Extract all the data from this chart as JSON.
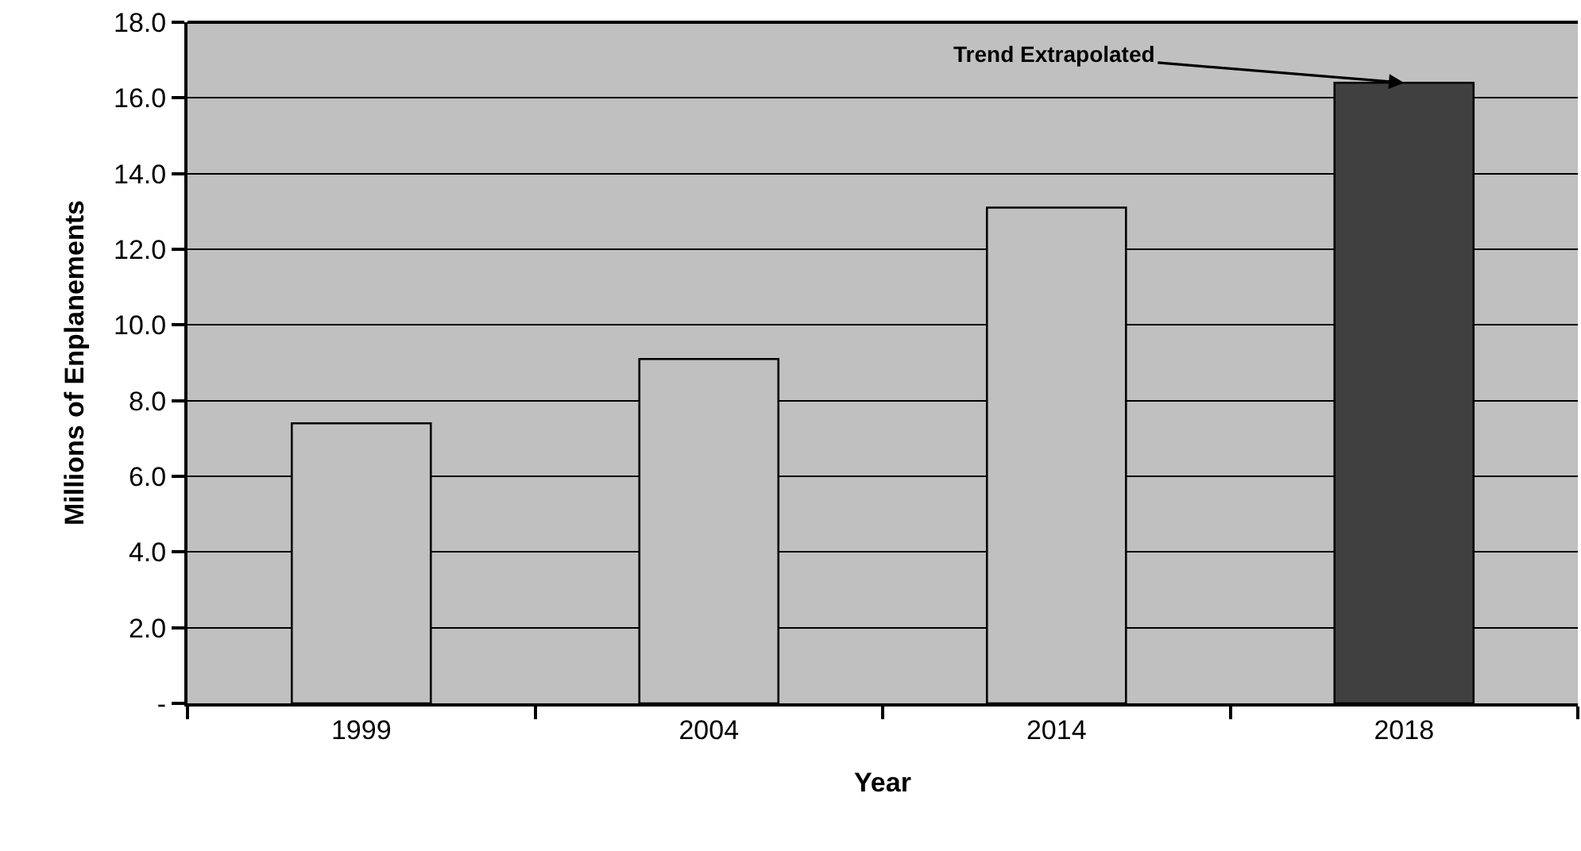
{
  "chart_data": {
    "type": "bar",
    "xlabel": "Year",
    "ylabel": "Millions of Enplanements",
    "categories": [
      "1999",
      "2004",
      "2014",
      "2018"
    ],
    "values": [
      7.4,
      9.1,
      13.1,
      16.4
    ],
    "colors": [
      "#c0c0c0",
      "#c0c0c0",
      "#c0c0c0",
      "#404040"
    ],
    "ylim": [
      0,
      18
    ],
    "yticks": [
      {
        "value": 0,
        "label": "-"
      },
      {
        "value": 2,
        "label": "2.0"
      },
      {
        "value": 4,
        "label": "4.0"
      },
      {
        "value": 6,
        "label": "6.0"
      },
      {
        "value": 8,
        "label": "8.0"
      },
      {
        "value": 10,
        "label": "10.0"
      },
      {
        "value": 12,
        "label": "12.0"
      },
      {
        "value": 14,
        "label": "14.0"
      },
      {
        "value": 16,
        "label": "16.0"
      },
      {
        "value": 18,
        "label": "18.0"
      }
    ],
    "grid": "y",
    "annotations": [
      {
        "text": "Trend Extrapolated",
        "x": "2018",
        "y": 16.4
      }
    ]
  }
}
